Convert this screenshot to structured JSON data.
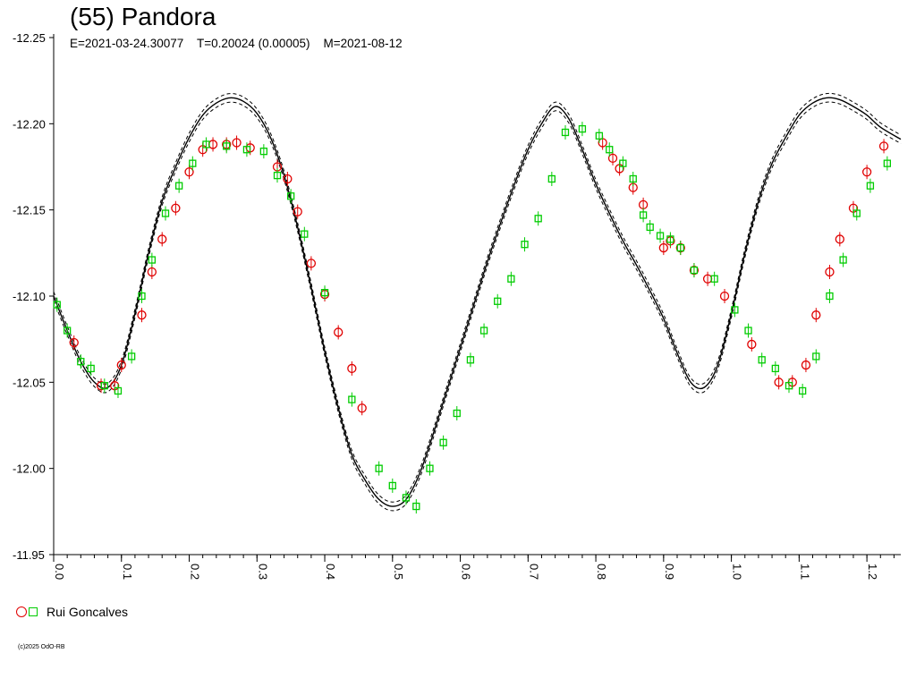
{
  "title": "(55) Pandora",
  "subtitle": "E=2021-03-24.30077    T=0.20024 (0.00005)    M=2021-08-12",
  "legend": {
    "observer": "Rui Goncalves"
  },
  "copyright": "(c)2025 OdO-RB",
  "colors": {
    "rui_circle": "#e00000",
    "rui_square": "#00cc00",
    "fit": "#000000"
  },
  "chart_data": {
    "type": "scatter",
    "title": "(55) Pandora",
    "xlabel": "",
    "ylabel": "",
    "xlim": [
      0.0,
      1.25
    ],
    "ylim": [
      -12.25,
      -11.95
    ],
    "y_inverted": true,
    "xticks": [
      "0.0",
      "0.1",
      "0.2",
      "0.3",
      "0.4",
      "0.5",
      "0.6",
      "0.7",
      "0.8",
      "0.9",
      "1.0",
      "1.1",
      "1.2"
    ],
    "yticks": [
      "-12.25",
      "-12.20",
      "-12.15",
      "-12.10",
      "-12.05",
      "-12.00",
      "-11.95"
    ],
    "grid": false,
    "legend_position": "bottom-left",
    "fit_curve": {
      "x": [
        0.0,
        0.02,
        0.04,
        0.06,
        0.08,
        0.1,
        0.12,
        0.14,
        0.16,
        0.18,
        0.2,
        0.22,
        0.24,
        0.26,
        0.28,
        0.3,
        0.32,
        0.34,
        0.36,
        0.38,
        0.4,
        0.42,
        0.44,
        0.46,
        0.48,
        0.5,
        0.52,
        0.54,
        0.56,
        0.58,
        0.6,
        0.62,
        0.64,
        0.66,
        0.68,
        0.7,
        0.72,
        0.74,
        0.76,
        0.78,
        0.8,
        0.82,
        0.84,
        0.86,
        0.88,
        0.9,
        0.92,
        0.94,
        0.96,
        0.98,
        1.0,
        1.02,
        1.04,
        1.06,
        1.08,
        1.1,
        1.12,
        1.14,
        1.16,
        1.18,
        1.2,
        1.22,
        1.25
      ],
      "y": [
        -12.1,
        -12.08,
        -12.062,
        -12.05,
        -12.047,
        -12.06,
        -12.09,
        -12.125,
        -12.155,
        -12.175,
        -12.192,
        -12.205,
        -12.212,
        -12.215,
        -12.213,
        -12.206,
        -12.192,
        -12.17,
        -12.14,
        -12.105,
        -12.068,
        -12.035,
        -12.008,
        -11.993,
        -11.982,
        -11.978,
        -11.982,
        -11.997,
        -12.02,
        -12.045,
        -12.07,
        -12.095,
        -12.12,
        -12.143,
        -12.165,
        -12.185,
        -12.2,
        -12.21,
        -12.203,
        -12.185,
        -12.165,
        -12.148,
        -12.132,
        -12.118,
        -12.103,
        -12.087,
        -12.067,
        -12.05,
        -12.047,
        -12.06,
        -12.09,
        -12.125,
        -12.155,
        -12.177,
        -12.192,
        -12.205,
        -12.212,
        -12.215,
        -12.214,
        -12.21,
        -12.205,
        -12.198,
        -12.191
      ],
      "band_offset": 0.0025
    },
    "series": [
      {
        "name": "Rui Goncalves",
        "marker": "circle",
        "color": "#e00000",
        "x": [
          0.03,
          0.07,
          0.09,
          0.1,
          0.13,
          0.145,
          0.16,
          0.18,
          0.2,
          0.22,
          0.235,
          0.255,
          0.27,
          0.29,
          0.33,
          0.345,
          0.36,
          0.38,
          0.4,
          0.42,
          0.44,
          0.455,
          0.81,
          0.825,
          0.835,
          0.855,
          0.87,
          0.9,
          0.91,
          0.925,
          0.945,
          0.965,
          0.99,
          1.03,
          1.07,
          1.09,
          1.11,
          1.125,
          1.145,
          1.16,
          1.18,
          1.2,
          1.225
        ],
        "y": [
          -12.073,
          -12.048,
          -12.048,
          -12.06,
          -12.089,
          -12.114,
          -12.133,
          -12.151,
          -12.172,
          -12.185,
          -12.188,
          -12.188,
          -12.189,
          -12.186,
          -12.175,
          -12.168,
          -12.149,
          -12.119,
          -12.101,
          -12.079,
          -12.058,
          -12.035,
          -12.189,
          -12.18,
          -12.174,
          -12.163,
          -12.153,
          -12.128,
          -12.132,
          -12.128,
          -12.115,
          -12.11,
          -12.1,
          -12.072,
          -12.05,
          -12.05,
          -12.06,
          -12.089,
          -12.114,
          -12.133,
          -12.151,
          -12.172,
          -12.187
        ]
      },
      {
        "name": "Rui Goncalves",
        "marker": "square",
        "color": "#00cc00",
        "x": [
          0.005,
          0.02,
          0.04,
          0.055,
          0.075,
          0.095,
          0.115,
          0.13,
          0.145,
          0.165,
          0.185,
          0.205,
          0.225,
          0.255,
          0.285,
          0.31,
          0.33,
          0.35,
          0.37,
          0.4,
          0.44,
          0.48,
          0.5,
          0.52,
          0.535,
          0.555,
          0.575,
          0.595,
          0.615,
          0.635,
          0.655,
          0.675,
          0.695,
          0.715,
          0.735,
          0.755,
          0.78,
          0.805,
          0.82,
          0.84,
          0.855,
          0.87,
          0.88,
          0.895,
          0.91,
          0.925,
          0.945,
          0.975,
          1.005,
          1.025,
          1.045,
          1.065,
          1.085,
          1.105,
          1.125,
          1.145,
          1.165,
          1.185,
          1.205,
          1.23
        ],
        "y": [
          -12.095,
          -12.08,
          -12.062,
          -12.058,
          -12.048,
          -12.045,
          -12.065,
          -12.1,
          -12.121,
          -12.148,
          -12.164,
          -12.177,
          -12.188,
          -12.187,
          -12.185,
          -12.184,
          -12.17,
          -12.158,
          -12.136,
          -12.102,
          -12.04,
          -12.0,
          -11.99,
          -11.983,
          -11.978,
          -12.0,
          -12.015,
          -12.032,
          -12.063,
          -12.08,
          -12.097,
          -12.11,
          -12.13,
          -12.145,
          -12.168,
          -12.195,
          -12.197,
          -12.193,
          -12.185,
          -12.177,
          -12.168,
          -12.147,
          -12.14,
          -12.135,
          -12.133,
          -12.128,
          -12.115,
          -12.11,
          -12.092,
          -12.08,
          -12.063,
          -12.058,
          -12.048,
          -12.045,
          -12.065,
          -12.1,
          -12.121,
          -12.148,
          -12.164,
          -12.177
        ]
      }
    ]
  }
}
